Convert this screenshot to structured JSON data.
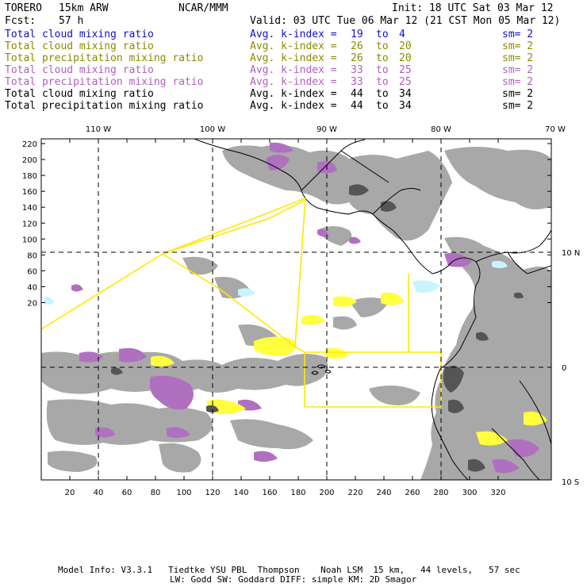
{
  "header": {
    "model_name": "TORERO",
    "resolution": "15km ARW",
    "org": "NCAR/MMM",
    "init": "Init: 18 UTC Sat 03 Mar 12",
    "fcst_label": "Fcst:",
    "fcst_value": "57 h",
    "valid": "Valid: 03 UTC Tue 06 Mar 12 (21 CST Mon 05 Mar 12)"
  },
  "fields": [
    {
      "name": "Total cloud mixing ratio",
      "k_label": "Avg. k-index =",
      "k_from": "19",
      "k_to_word": "to",
      "k_to": "4",
      "sm": "sm= 2",
      "color": "#1010c0"
    },
    {
      "name": "Total cloud mixing ratio",
      "k_label": "Avg. k-index =",
      "k_from": "26",
      "k_to_word": "to",
      "k_to": "20",
      "sm": "sm= 2",
      "color": "#8a8a00"
    },
    {
      "name": "Total precipitation mixing ratio",
      "k_label": "Avg. k-index =",
      "k_from": "26",
      "k_to_word": "to",
      "k_to": "20",
      "sm": "sm= 2",
      "color": "#8a8a00"
    },
    {
      "name": "Total cloud mixing ratio",
      "k_label": "Avg. k-index =",
      "k_from": "33",
      "k_to_word": "to",
      "k_to": "25",
      "sm": "sm= 2",
      "color": "#b060c0"
    },
    {
      "name": "Total precipitation mixing ratio",
      "k_label": "Avg. k-index =",
      "k_from": "33",
      "k_to_word": "to",
      "k_to": "25",
      "sm": "sm= 2",
      "color": "#b060c0"
    },
    {
      "name": "Total cloud mixing ratio",
      "k_label": "Avg. k-index =",
      "k_from": "44",
      "k_to_word": "to",
      "k_to": "34",
      "sm": "sm= 2",
      "color": "#000000"
    },
    {
      "name": "Total precipitation mixing ratio",
      "k_label": "Avg. k-index =",
      "k_from": "44",
      "k_to_word": "to",
      "k_to": "34",
      "sm": "sm= 2",
      "color": "#000000"
    }
  ],
  "map": {
    "lon_labels": [
      "110 W",
      "100 W",
      "90 W",
      "80 W",
      "70 W"
    ],
    "lat_labels": [
      "10 N",
      "0",
      "10 S"
    ],
    "y_ticks": [
      "220",
      "200",
      "180",
      "160",
      "140",
      "120",
      "100",
      "80",
      "60",
      "40",
      "20"
    ],
    "x_ticks": [
      "20",
      "40",
      "60",
      "80",
      "100",
      "120",
      "140",
      "160",
      "180",
      "200",
      "220",
      "240",
      "260",
      "280",
      "300",
      "320"
    ],
    "colors": {
      "gray_cloud": "#a8a8a8",
      "dark_precip": "#555555",
      "purple": "#b070c0",
      "yellow": "#ffff40",
      "cyan": "#c8f4ff",
      "domain_outline": "#ffe800",
      "coast": "#000000"
    }
  },
  "footer": {
    "line1": "Model Info: V3.3.1   Tiedtke YSU PBL  Thompson    Noah LSM  15 km,   44 levels,   57 sec",
    "line2": "LW: Godd SW: Goddard DIFF: simple KM: 2D Smagor"
  }
}
